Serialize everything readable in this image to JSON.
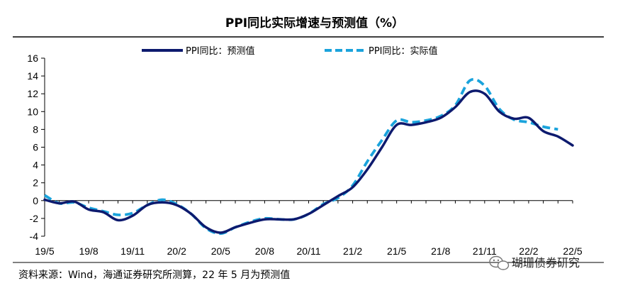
{
  "chart_data": {
    "type": "line",
    "title": "PPI同比实际增速与预测值（%）",
    "xlabel": "",
    "ylabel": "",
    "ylim": [
      -4,
      16
    ],
    "yticks": [
      -4,
      -2,
      0,
      2,
      4,
      6,
      8,
      10,
      12,
      14,
      16
    ],
    "x": [
      "19/5",
      "19/6",
      "19/7",
      "19/8",
      "19/9",
      "19/10",
      "19/11",
      "19/12",
      "20/1",
      "20/2",
      "20/3",
      "20/4",
      "20/5",
      "20/6",
      "20/7",
      "20/8",
      "20/9",
      "20/10",
      "20/11",
      "20/12",
      "21/1",
      "21/2",
      "21/3",
      "21/4",
      "21/5",
      "21/6",
      "21/7",
      "21/8",
      "21/9",
      "21/10",
      "21/11",
      "21/12",
      "22/1",
      "22/2",
      "22/3",
      "22/4",
      "22/5"
    ],
    "xticks": [
      "19/5",
      "19/8",
      "19/11",
      "20/2",
      "20/5",
      "20/8",
      "20/11",
      "21/2",
      "21/5",
      "21/8",
      "21/11",
      "22/2",
      "22/5"
    ],
    "legend_position": "top",
    "series": [
      {
        "name": "PPI同比：预测值",
        "color": "#0d1a6e",
        "style": "solid",
        "values": [
          0.1,
          -0.3,
          -0.1,
          -1.0,
          -1.3,
          -2.2,
          -1.7,
          -0.5,
          -0.2,
          -0.5,
          -1.5,
          -3.0,
          -3.6,
          -3.0,
          -2.5,
          -2.1,
          -2.1,
          -2.1,
          -1.5,
          -0.5,
          0.5,
          1.5,
          3.5,
          6.0,
          8.5,
          8.5,
          8.8,
          9.3,
          10.5,
          12.2,
          12.0,
          10.0,
          9.2,
          9.3,
          7.8,
          7.2,
          6.2
        ]
      },
      {
        "name": "PPI同比：实际值",
        "color": "#1aa3dc",
        "style": "dashed",
        "values": [
          0.6,
          -0.3,
          -0.2,
          -0.8,
          -1.2,
          -1.6,
          -1.4,
          -0.5,
          0.1,
          -0.4,
          -1.5,
          -3.1,
          -3.7,
          -3.0,
          -2.4,
          -2.0,
          -2.1,
          -2.1,
          -1.5,
          -0.4,
          0.3,
          1.7,
          4.4,
          6.8,
          9.0,
          8.8,
          9.0,
          9.5,
          10.7,
          13.5,
          12.9,
          10.3,
          9.1,
          8.8,
          8.3,
          8.0,
          null
        ]
      }
    ]
  },
  "source_note": "资料来源：Wind，海通证券研究所测算，22 年 5 月为预测值",
  "watermark": "瑚珊债券研究"
}
